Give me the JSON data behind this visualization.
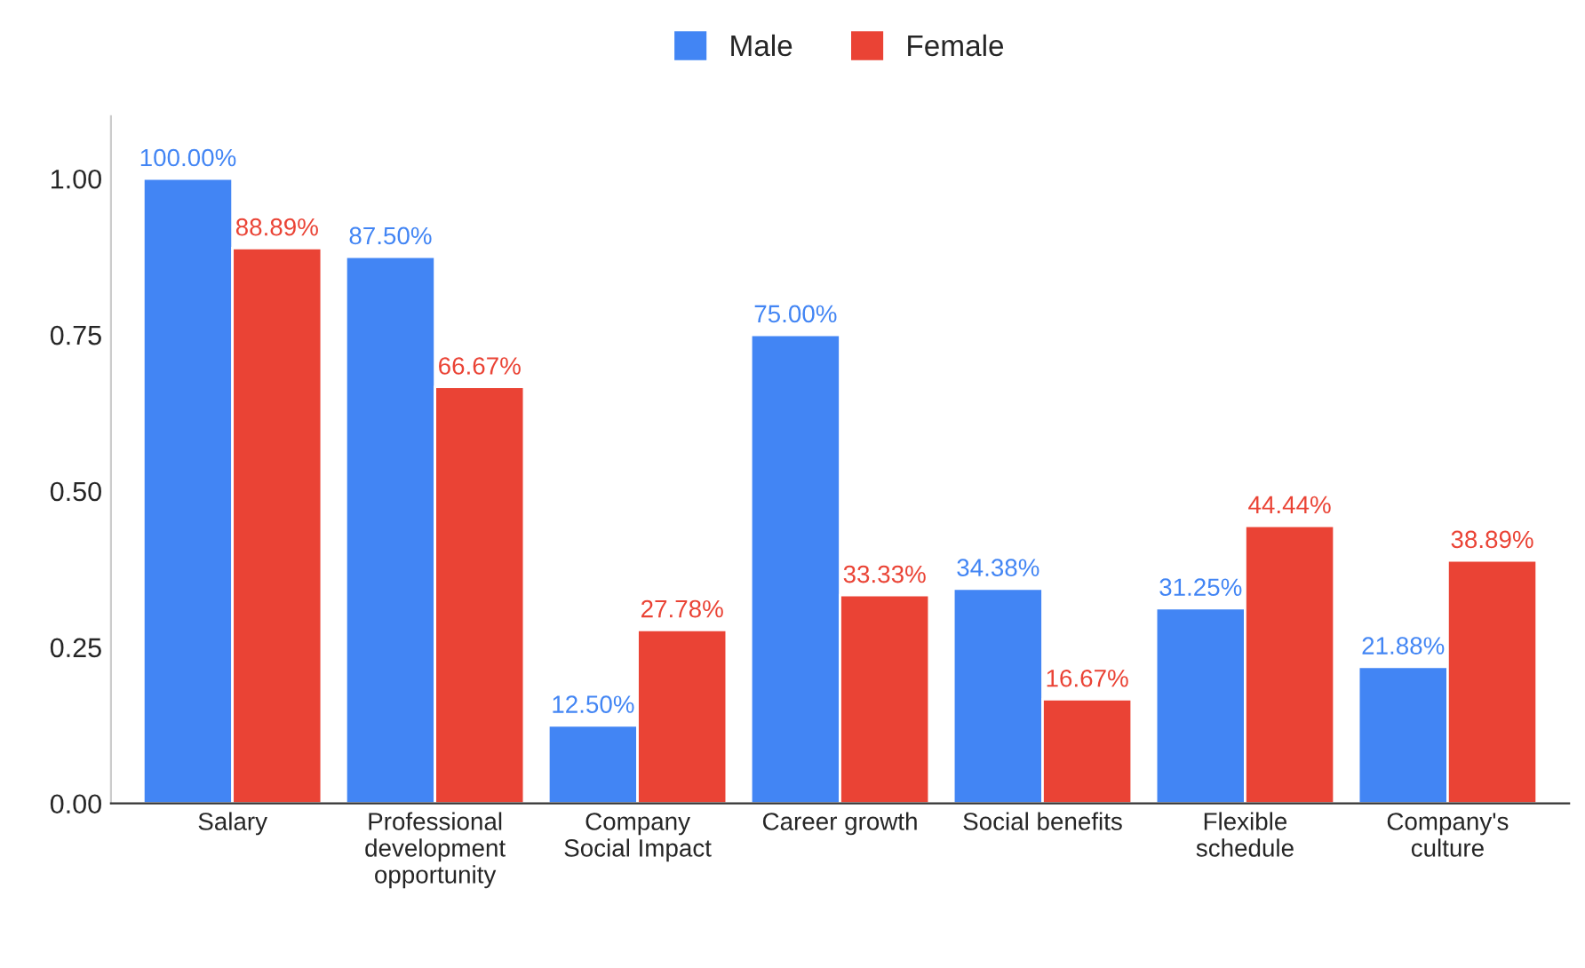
{
  "chart_data": {
    "type": "bar",
    "categories": [
      "Salary",
      "Professional\ndevelopment\nopportunity",
      "Company\nSocial Impact",
      "Career growth",
      "Social benefits",
      "Flexible\nschedule",
      "Company's\nculture"
    ],
    "series": [
      {
        "name": "Male",
        "color": "#4285f4",
        "values": [
          1.0,
          0.875,
          0.125,
          0.75,
          0.3438,
          0.3125,
          0.2188
        ],
        "value_labels": [
          "100.00%",
          "87.50%",
          "12.50%",
          "75.00%",
          "34.38%",
          "31.25%",
          "21.88%"
        ]
      },
      {
        "name": "Female",
        "color": "#ea4335",
        "values": [
          0.8889,
          0.6667,
          0.2778,
          0.3333,
          0.1667,
          0.4444,
          0.3889
        ],
        "value_labels": [
          "88.89%",
          "66.67%",
          "27.78%",
          "33.33%",
          "16.67%",
          "44.44%",
          "38.89%"
        ]
      }
    ],
    "ylim": [
      0,
      1.1
    ],
    "yticks": [
      {
        "value": 0,
        "label": "0.00"
      },
      {
        "value": 0.25,
        "label": "0.25"
      },
      {
        "value": 0.5,
        "label": "0.50"
      },
      {
        "value": 0.75,
        "label": "0.75"
      },
      {
        "value": 1.0,
        "label": "1.00"
      }
    ],
    "legend": "top",
    "grid": false
  }
}
